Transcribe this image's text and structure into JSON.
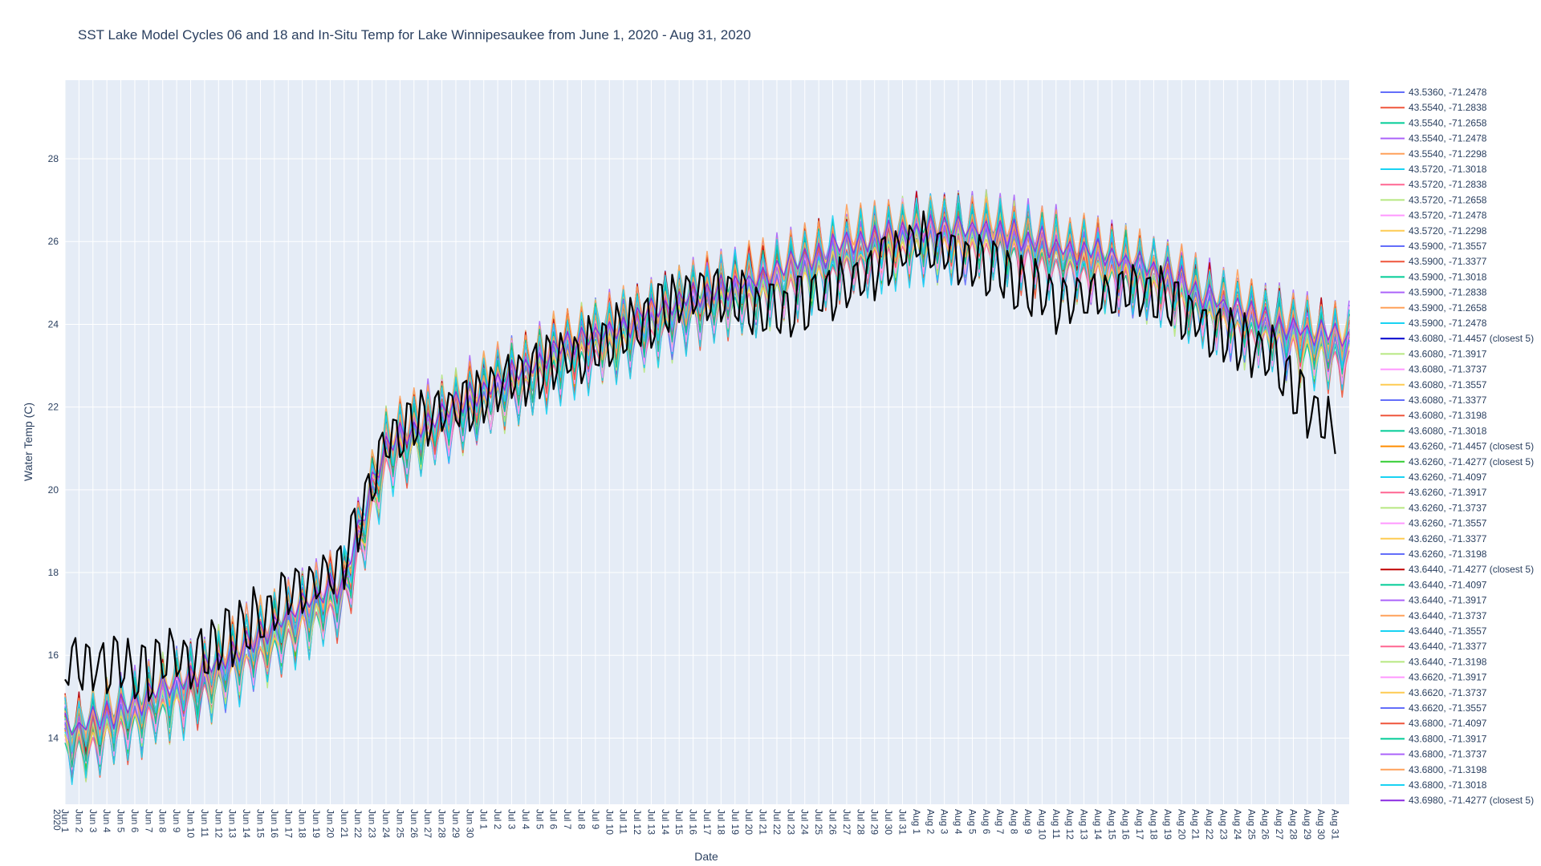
{
  "chart_data": {
    "type": "line",
    "title": "SST Lake Model Cycles 06 and 18 and In-Situ Temp for Lake Winnipesaukee from June 1, 2020 - Aug 31, 2020",
    "xlabel": "Date",
    "ylabel": "Water Temp (C)",
    "x_range": [
      "2020-06-01",
      "2020-09-01"
    ],
    "ylim": [
      12.4,
      29.9
    ],
    "y_ticks": [
      14,
      16,
      18,
      20,
      22,
      24,
      26,
      28
    ],
    "x_tick_first_label": "Jun 1",
    "x_tick_first_year": "2020",
    "x_ticks": [
      "Jun 1",
      "Jun 2",
      "Jun 3",
      "Jun 4",
      "Jun 5",
      "Jun 6",
      "Jun 7",
      "Jun 8",
      "Jun 9",
      "Jun 10",
      "Jun 11",
      "Jun 12",
      "Jun 13",
      "Jun 14",
      "Jun 15",
      "Jun 16",
      "Jun 17",
      "Jun 18",
      "Jun 19",
      "Jun 20",
      "Jun 21",
      "Jun 22",
      "Jun 23",
      "Jun 24",
      "Jun 25",
      "Jun 26",
      "Jun 27",
      "Jun 28",
      "Jun 29",
      "Jun 30",
      "Jul 1",
      "Jul 2",
      "Jul 3",
      "Jul 4",
      "Jul 5",
      "Jul 6",
      "Jul 7",
      "Jul 8",
      "Jul 9",
      "Jul 10",
      "Jul 11",
      "Jul 12",
      "Jul 13",
      "Jul 14",
      "Jul 15",
      "Jul 16",
      "Jul 17",
      "Jul 18",
      "Jul 19",
      "Jul 20",
      "Jul 21",
      "Jul 22",
      "Jul 23",
      "Jul 24",
      "Jul 25",
      "Jul 26",
      "Jul 27",
      "Jul 28",
      "Jul 29",
      "Jul 30",
      "Jul 31",
      "Aug 1",
      "Aug 2",
      "Aug 3",
      "Aug 4",
      "Aug 5",
      "Aug 6",
      "Aug 7",
      "Aug 8",
      "Aug 9",
      "Aug 10",
      "Aug 11",
      "Aug 12",
      "Aug 13",
      "Aug 14",
      "Aug 15",
      "Aug 16",
      "Aug 17",
      "Aug 18",
      "Aug 19",
      "Aug 20",
      "Aug 21",
      "Aug 22",
      "Aug 23",
      "Aug 24",
      "Aug 25",
      "Aug 26",
      "Aug 27",
      "Aug 28",
      "Aug 29",
      "Aug 30",
      "Aug 31"
    ],
    "grid": true,
    "legend_position": "right",
    "plot_background": "#E5ECF6",
    "trend_days": [
      1,
      5,
      10,
      20,
      23,
      31,
      36,
      41,
      46,
      50,
      56,
      61,
      66,
      71,
      76,
      79,
      82,
      86,
      89,
      92
    ],
    "model_trend": [
      13.9,
      14.5,
      15.3,
      17.5,
      20.8,
      22.3,
      23.2,
      23.8,
      24.5,
      24.8,
      25.6,
      26.0,
      26.0,
      25.6,
      25.2,
      24.9,
      24.3,
      23.8,
      23.5,
      23.3
    ],
    "observed_trend": [
      15.8,
      15.6,
      16.1,
      18.3,
      21.2,
      22.5,
      23.2,
      24.0,
      24.9,
      24.3,
      24.9,
      26.0,
      25.5,
      24.5,
      24.8,
      24.6,
      23.9,
      23.4,
      22.0,
      20.9
    ],
    "series": [
      {
        "name": "43.5360, -71.2478",
        "color": "#636EFA"
      },
      {
        "name": "43.5540, -71.2838",
        "color": "#EF553B"
      },
      {
        "name": "43.5540, -71.2658",
        "color": "#00CC96"
      },
      {
        "name": "43.5540, -71.2478",
        "color": "#AB63FA"
      },
      {
        "name": "43.5540, -71.2298",
        "color": "#FFA15A"
      },
      {
        "name": "43.5720, -71.3018",
        "color": "#19D3F3"
      },
      {
        "name": "43.5720, -71.2838",
        "color": "#FF6692"
      },
      {
        "name": "43.5720, -71.2658",
        "color": "#B6E880"
      },
      {
        "name": "43.5720, -71.2478",
        "color": "#FF97FF"
      },
      {
        "name": "43.5720, -71.2298",
        "color": "#FECB52"
      },
      {
        "name": "43.5900, -71.3557",
        "color": "#636EFA"
      },
      {
        "name": "43.5900, -71.3377",
        "color": "#EF553B"
      },
      {
        "name": "43.5900, -71.3018",
        "color": "#00CC96"
      },
      {
        "name": "43.5900, -71.2838",
        "color": "#AB63FA"
      },
      {
        "name": "43.5900, -71.2658",
        "color": "#FFA15A"
      },
      {
        "name": "43.5900, -71.2478",
        "color": "#19D3F3"
      },
      {
        "name": "43.6080, -71.4457 (closest 5)",
        "color": "#0000CD"
      },
      {
        "name": "43.6080, -71.3917",
        "color": "#B6E880"
      },
      {
        "name": "43.6080, -71.3737",
        "color": "#FF97FF"
      },
      {
        "name": "43.6080, -71.3557",
        "color": "#FECB52"
      },
      {
        "name": "43.6080, -71.3377",
        "color": "#636EFA"
      },
      {
        "name": "43.6080, -71.3198",
        "color": "#EF553B"
      },
      {
        "name": "43.6080, -71.3018",
        "color": "#00CC96"
      },
      {
        "name": "43.6260, -71.4457 (closest 5)",
        "color": "#FF8C00"
      },
      {
        "name": "43.6260, -71.4277 (closest 5)",
        "color": "#32CD32"
      },
      {
        "name": "43.6260, -71.4097",
        "color": "#19D3F3"
      },
      {
        "name": "43.6260, -71.3917",
        "color": "#FF6692"
      },
      {
        "name": "43.6260, -71.3737",
        "color": "#B6E880"
      },
      {
        "name": "43.6260, -71.3557",
        "color": "#FF97FF"
      },
      {
        "name": "43.6260, -71.3377",
        "color": "#FECB52"
      },
      {
        "name": "43.6260, -71.3198",
        "color": "#636EFA"
      },
      {
        "name": "43.6440, -71.4277 (closest 5)",
        "color": "#C00000"
      },
      {
        "name": "43.6440, -71.4097",
        "color": "#00CC96"
      },
      {
        "name": "43.6440, -71.3917",
        "color": "#AB63FA"
      },
      {
        "name": "43.6440, -71.3737",
        "color": "#FFA15A"
      },
      {
        "name": "43.6440, -71.3557",
        "color": "#19D3F3"
      },
      {
        "name": "43.6440, -71.3377",
        "color": "#FF6692"
      },
      {
        "name": "43.6440, -71.3198",
        "color": "#B6E880"
      },
      {
        "name": "43.6620, -71.3917",
        "color": "#FF97FF"
      },
      {
        "name": "43.6620, -71.3737",
        "color": "#FECB52"
      },
      {
        "name": "43.6620, -71.3557",
        "color": "#636EFA"
      },
      {
        "name": "43.6800, -71.4097",
        "color": "#EF553B"
      },
      {
        "name": "43.6800, -71.3917",
        "color": "#00CC96"
      },
      {
        "name": "43.6800, -71.3737",
        "color": "#AB63FA"
      },
      {
        "name": "43.6800, -71.3198",
        "color": "#FFA15A"
      },
      {
        "name": "43.6800, -71.3018",
        "color": "#19D3F3"
      },
      {
        "name": "43.6980, -71.4277 (closest 5)",
        "color": "#8A2BE2"
      },
      {
        "name": "",
        "color": "#000000",
        "observed": true
      }
    ]
  }
}
